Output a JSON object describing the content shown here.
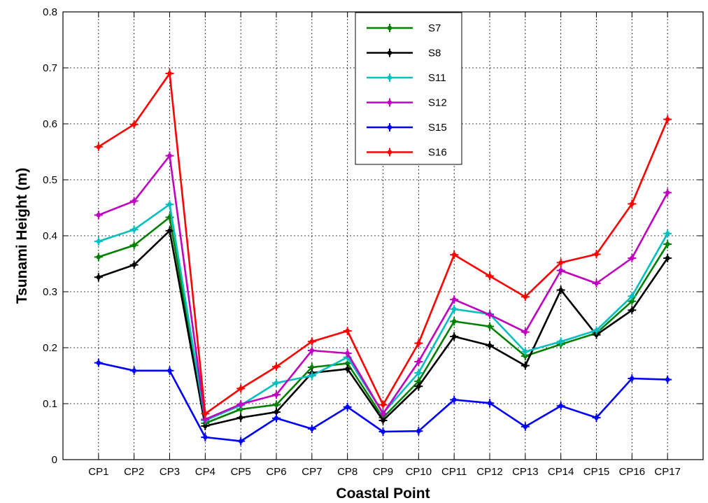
{
  "chart_data": {
    "type": "line",
    "title": "",
    "xlabel": "Coastal Point",
    "ylabel": "Tsunami Height (m)",
    "ylim": [
      0,
      0.8
    ],
    "yticks": [
      "0",
      "0.1",
      "0.2",
      "0.3",
      "0.4",
      "0.5",
      "0.6",
      "0.7",
      "0.8"
    ],
    "grid": true,
    "legend_position": "top-center",
    "categories": [
      "CP1",
      "CP2",
      "CP3",
      "CP4",
      "CP5",
      "CP6",
      "CP7",
      "CP8",
      "CP9",
      "CP10",
      "CP11",
      "CP12",
      "CP13",
      "CP14",
      "CP15",
      "CP16",
      "CP17"
    ],
    "series": [
      {
        "name": "S7",
        "color": "#008000",
        "values": [
          0.362,
          0.383,
          0.433,
          0.065,
          0.09,
          0.098,
          0.165,
          0.172,
          0.075,
          0.14,
          0.247,
          0.238,
          0.185,
          0.206,
          0.226,
          0.283,
          0.385
        ]
      },
      {
        "name": "S8",
        "color": "#000000",
        "values": [
          0.326,
          0.348,
          0.409,
          0.06,
          0.075,
          0.085,
          0.155,
          0.162,
          0.07,
          0.131,
          0.22,
          0.204,
          0.168,
          0.303,
          0.223,
          0.267,
          0.36
        ]
      },
      {
        "name": "S11",
        "color": "#00BFBF",
        "values": [
          0.39,
          0.411,
          0.456,
          0.07,
          0.097,
          0.137,
          0.15,
          0.183,
          0.083,
          0.155,
          0.269,
          0.26,
          0.193,
          0.211,
          0.231,
          0.292,
          0.404
        ]
      },
      {
        "name": "S12",
        "color": "#BF00BF",
        "values": [
          0.437,
          0.462,
          0.543,
          0.072,
          0.099,
          0.116,
          0.195,
          0.19,
          0.082,
          0.175,
          0.286,
          0.259,
          0.228,
          0.338,
          0.315,
          0.36,
          0.477
        ]
      },
      {
        "name": "S15",
        "color": "#0000FF",
        "values": [
          0.173,
          0.159,
          0.159,
          0.04,
          0.033,
          0.074,
          0.055,
          0.094,
          0.05,
          0.051,
          0.107,
          0.101,
          0.059,
          0.096,
          0.075,
          0.145,
          0.143
        ]
      },
      {
        "name": "S16",
        "color": "#FF0000",
        "values": [
          0.559,
          0.599,
          0.69,
          0.082,
          0.127,
          0.166,
          0.211,
          0.23,
          0.098,
          0.208,
          0.366,
          0.328,
          0.291,
          0.352,
          0.367,
          0.457,
          0.608
        ]
      }
    ]
  }
}
